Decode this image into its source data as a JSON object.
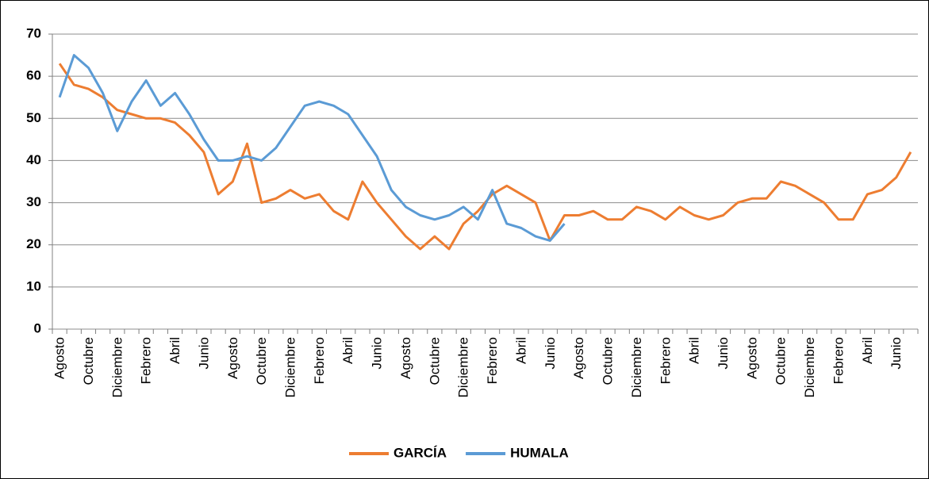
{
  "chart_data": {
    "type": "line",
    "categories": [
      "Agosto",
      null,
      "Octubre",
      null,
      "Diciembre",
      null,
      "Febrero",
      null,
      "Abril",
      null,
      "Junio",
      null,
      "Agosto",
      null,
      "Octubre",
      null,
      "Diciembre",
      null,
      "Febrero",
      null,
      "Abril",
      null,
      "Junio",
      null,
      "Agosto",
      null,
      "Octubre",
      null,
      "Diciembre",
      null,
      "Febrero",
      null,
      "Abril",
      null,
      "Junio",
      null,
      "Agosto",
      null,
      "Octubre",
      null,
      "Diciembre",
      null,
      "Febrero",
      null,
      "Abril",
      null,
      "Junio",
      null,
      "Agosto",
      null,
      "Octubre",
      null,
      "Diciembre",
      null,
      "Febrero",
      null,
      "Abril",
      null,
      "Junio",
      null
    ],
    "series": [
      {
        "name": "GARCÍA",
        "color": "#ed7d31",
        "values": [
          63,
          58,
          57,
          55,
          52,
          51,
          50,
          50,
          49,
          46,
          42,
          32,
          35,
          44,
          30,
          31,
          33,
          31,
          32,
          28,
          26,
          35,
          30,
          26,
          22,
          19,
          22,
          19,
          25,
          28,
          32,
          34,
          32,
          30,
          21,
          27,
          27,
          28,
          26,
          26,
          29,
          28,
          26,
          29,
          27,
          26,
          27,
          30,
          31,
          31,
          35,
          34,
          32,
          30,
          26,
          26,
          32,
          33,
          36,
          42
        ]
      },
      {
        "name": "HUMALA",
        "color": "#5b9bd5",
        "values": [
          55,
          65,
          62,
          56,
          47,
          54,
          59,
          53,
          56,
          51,
          45,
          40,
          40,
          41,
          40,
          43,
          48,
          53,
          54,
          53,
          51,
          46,
          41,
          33,
          29,
          27,
          26,
          27,
          29,
          26,
          33,
          25,
          24,
          22,
          21,
          25,
          null,
          null,
          null,
          null,
          null,
          null,
          null,
          null,
          null,
          null,
          null,
          null,
          null,
          null,
          null,
          null,
          null,
          null,
          null,
          null,
          null,
          null,
          null,
          null
        ]
      }
    ],
    "ylim": [
      0,
      70
    ],
    "yticks": [
      0,
      10,
      20,
      30,
      40,
      50,
      60,
      70
    ],
    "grid": true,
    "legend": "bottom"
  }
}
